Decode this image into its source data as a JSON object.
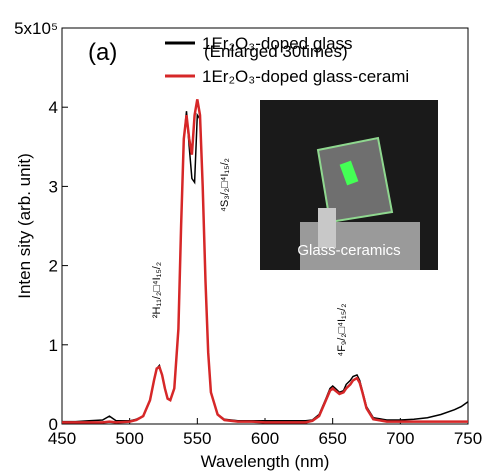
{
  "chart_data": {
    "type": "line",
    "annotation_label": "(a)",
    "legend_note": "(Enlarged 30times)",
    "x_label": "Wavelength (nm)",
    "y_label": "Inten sity (arb. unit)",
    "inset_label": "Glass-ceramics",
    "transitions": [
      {
        "label": "²H₁₁/₂□⁴I₁₅/₂",
        "x": 520
      },
      {
        "label": "⁴S₃/₂□⁴I₁₅/₂",
        "x": 553
      },
      {
        "label": "⁴F₉/₂□⁴I₁₅/₂",
        "x": 655
      }
    ],
    "xlim": [
      450,
      750
    ],
    "xticks": [
      450,
      500,
      550,
      600,
      650,
      700,
      750
    ],
    "ylim": [
      0,
      5
    ],
    "yticks": [
      0,
      1,
      2,
      3,
      4,
      {
        "value": 5,
        "label": "5x10⁵"
      }
    ],
    "x": [
      450,
      460,
      470,
      480,
      485,
      490,
      500,
      505,
      510,
      515,
      518,
      520,
      522,
      524,
      526,
      528,
      530,
      533,
      536,
      538,
      540,
      542,
      544,
      546,
      548,
      550,
      552,
      554,
      556,
      558,
      560,
      565,
      570,
      580,
      590,
      600,
      610,
      620,
      630,
      635,
      640,
      645,
      648,
      650,
      652,
      655,
      658,
      660,
      663,
      665,
      668,
      670,
      672,
      675,
      680,
      690,
      700,
      710,
      720,
      730,
      740,
      745,
      750
    ],
    "series": [
      {
        "name": "1Er₂O₃-doped glass",
        "color": "#000000",
        "values": [
          0.03,
          0.03,
          0.04,
          0.05,
          0.1,
          0.04,
          0.04,
          0.06,
          0.1,
          0.3,
          0.55,
          0.7,
          0.74,
          0.62,
          0.45,
          0.33,
          0.3,
          0.45,
          1.2,
          2.5,
          3.6,
          3.95,
          3.5,
          3.1,
          3.05,
          3.9,
          3.85,
          3.0,
          1.8,
          0.9,
          0.4,
          0.12,
          0.06,
          0.04,
          0.04,
          0.04,
          0.04,
          0.04,
          0.04,
          0.05,
          0.12,
          0.32,
          0.45,
          0.48,
          0.45,
          0.4,
          0.42,
          0.5,
          0.55,
          0.6,
          0.62,
          0.55,
          0.42,
          0.22,
          0.08,
          0.05,
          0.05,
          0.06,
          0.08,
          0.12,
          0.18,
          0.22,
          0.28
        ]
      },
      {
        "name": "1Er₂O₃-doped glass-cerami",
        "color": "#d62728",
        "values": [
          0.02,
          0.02,
          0.02,
          0.02,
          0.03,
          0.02,
          0.03,
          0.05,
          0.1,
          0.3,
          0.55,
          0.7,
          0.72,
          0.62,
          0.45,
          0.32,
          0.3,
          0.45,
          1.2,
          2.5,
          3.6,
          3.9,
          3.6,
          3.4,
          3.9,
          4.1,
          3.9,
          3.0,
          1.8,
          0.9,
          0.4,
          0.12,
          0.05,
          0.03,
          0.03,
          0.02,
          0.02,
          0.02,
          0.02,
          0.04,
          0.1,
          0.3,
          0.42,
          0.45,
          0.42,
          0.38,
          0.4,
          0.45,
          0.5,
          0.55,
          0.58,
          0.52,
          0.4,
          0.2,
          0.06,
          0.03,
          0.03,
          0.03,
          0.03,
          0.03,
          0.03,
          0.03,
          0.03
        ]
      }
    ]
  }
}
